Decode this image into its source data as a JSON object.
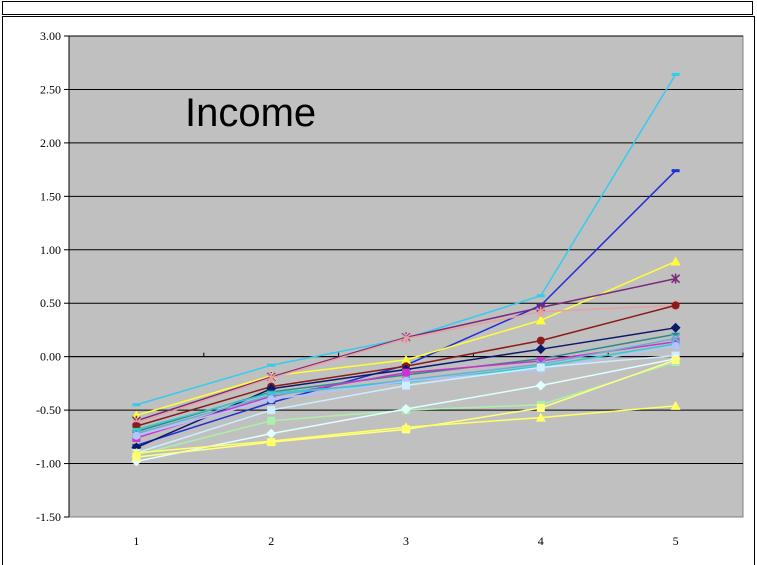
{
  "chart_data": {
    "type": "line",
    "title": "Income",
    "x": [
      1,
      2,
      3,
      4,
      5
    ],
    "xticks": [
      "1",
      "2",
      "3",
      "4",
      "5"
    ],
    "ylim": [
      -1.5,
      3.0
    ],
    "yticks": [
      "3.00",
      "2.50",
      "2.00",
      "1.50",
      "1.00",
      "0.50",
      "0.00",
      "-0.50",
      "-1.00",
      "-1.50"
    ],
    "grid": true,
    "plot_background": "#c0c0c0",
    "series": [
      {
        "color": "#33ccee",
        "marker": "dash",
        "values": [
          -0.45,
          -0.08,
          0.17,
          0.57,
          2.64
        ]
      },
      {
        "color": "#1f2fd6",
        "marker": "dash",
        "values": [
          -0.83,
          -0.43,
          -0.08,
          0.48,
          1.74
        ]
      },
      {
        "color": "#ffff33",
        "marker": "triangle",
        "values": [
          -0.55,
          -0.18,
          -0.03,
          0.34,
          0.89
        ]
      },
      {
        "color": "#7a2a7a",
        "marker": "star",
        "values": [
          -0.6,
          -0.19,
          0.18,
          0.46,
          0.73
        ]
      },
      {
        "color": "#e8a0a0",
        "marker": "star",
        "values": [
          -0.62,
          -0.2,
          0.17,
          0.42,
          0.48
        ]
      },
      {
        "color": "#8b1a1a",
        "marker": "circle",
        "values": [
          -0.65,
          -0.28,
          -0.09,
          0.15,
          0.48
        ]
      },
      {
        "color": "#0a1a6a",
        "marker": "diamond",
        "values": [
          -0.85,
          -0.3,
          -0.12,
          0.07,
          0.27
        ]
      },
      {
        "color": "#2e8b8b",
        "marker": "dash",
        "values": [
          -0.7,
          -0.33,
          -0.17,
          -0.02,
          0.21
        ]
      },
      {
        "color": "#cc33cc",
        "marker": "square",
        "values": [
          -0.76,
          -0.37,
          -0.15,
          -0.04,
          0.14
        ]
      },
      {
        "color": "#66b0d8",
        "marker": "x",
        "values": [
          -0.72,
          -0.36,
          -0.22,
          -0.07,
          0.17
        ]
      },
      {
        "color": "#33cccc",
        "marker": "dash",
        "values": [
          -0.68,
          -0.34,
          -0.24,
          -0.09,
          0.12
        ]
      },
      {
        "color": "#b0c4ff",
        "marker": "circle",
        "values": [
          -0.74,
          -0.4,
          -0.23,
          -0.12,
          0.1
        ]
      },
      {
        "color": "#cceeff",
        "marker": "square",
        "values": [
          -0.9,
          -0.5,
          -0.27,
          -0.1,
          0.01
        ]
      },
      {
        "color": "#aaf0aa",
        "marker": "square",
        "values": [
          -0.92,
          -0.6,
          -0.5,
          -0.45,
          -0.05
        ]
      },
      {
        "color": "#e0ffff",
        "marker": "diamond",
        "values": [
          -0.98,
          -0.72,
          -0.49,
          -0.27,
          -0.02
        ]
      },
      {
        "color": "#ffff80",
        "marker": "square",
        "values": [
          -0.94,
          -0.8,
          -0.68,
          -0.48,
          -0.03
        ]
      },
      {
        "color": "#ffff66",
        "marker": "triangle",
        "values": [
          -0.9,
          -0.79,
          -0.66,
          -0.57,
          -0.46
        ]
      }
    ]
  }
}
